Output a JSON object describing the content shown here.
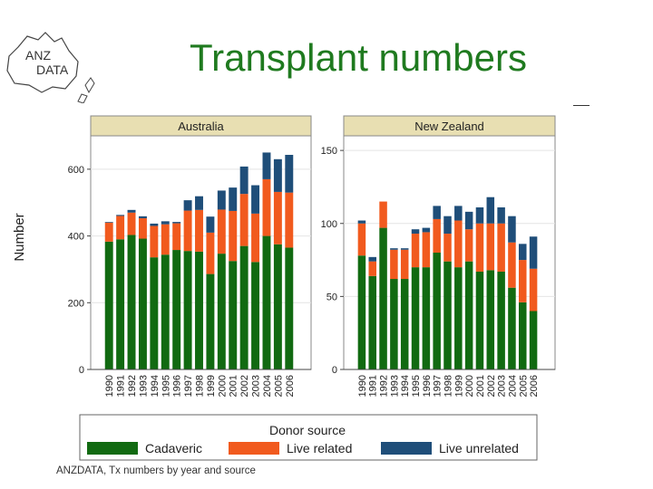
{
  "slide": {
    "title": "Transplant numbers",
    "logo_text_top": "ANZ",
    "logo_text_bottom": "DATA",
    "caption": "ANZDATA, Tx numbers by year and source"
  },
  "colors": {
    "title": "#1f7a1f",
    "cadaveric": "#116a11",
    "live_related": "#f15a1e",
    "live_unrelated": "#1f4e79",
    "panel_header": "#e8dfb2"
  },
  "chart_data": [
    {
      "type": "bar",
      "stacked": true,
      "title": "Australia",
      "ylabel": "Number",
      "ylim": [
        0,
        700
      ],
      "yticks": [
        0,
        200,
        400,
        600
      ],
      "categories": [
        "1990",
        "1991",
        "1992",
        "1993",
        "1994",
        "1995",
        "1996",
        "1997",
        "1998",
        "1999",
        "2000",
        "2001",
        "2002",
        "2003",
        "2004",
        "2005",
        "2006"
      ],
      "series": [
        {
          "name": "Cadaveric",
          "values": [
            383,
            390,
            403,
            392,
            336,
            344,
            358,
            355,
            353,
            286,
            347,
            325,
            370,
            322,
            400,
            375,
            365
          ]
        },
        {
          "name": "Live related",
          "values": [
            57,
            70,
            67,
            61,
            94,
            91,
            80,
            121,
            125,
            124,
            132,
            150,
            156,
            145,
            170,
            157,
            165
          ]
        },
        {
          "name": "Live unrelated",
          "values": [
            2,
            3,
            8,
            6,
            7,
            9,
            4,
            31,
            41,
            48,
            57,
            70,
            82,
            85,
            80,
            98,
            113
          ]
        }
      ]
    },
    {
      "type": "bar",
      "stacked": true,
      "title": "New Zealand",
      "ylabel": "",
      "ylim": [
        0,
        160
      ],
      "yticks": [
        0,
        50,
        100,
        150
      ],
      "categories": [
        "1990",
        "1991",
        "1992",
        "1993",
        "1994",
        "1995",
        "1996",
        "1997",
        "1998",
        "1999",
        "2000",
        "2001",
        "2002",
        "2003",
        "2004",
        "2005",
        "2006"
      ],
      "series": [
        {
          "name": "Cadaveric",
          "values": [
            78,
            64,
            97,
            62,
            62,
            70,
            70,
            80,
            74,
            70,
            74,
            67,
            68,
            67,
            56,
            46,
            40
          ]
        },
        {
          "name": "Live related",
          "values": [
            22,
            10,
            18,
            20,
            20,
            23,
            24,
            23,
            19,
            32,
            22,
            33,
            32,
            33,
            31,
            29,
            29
          ]
        },
        {
          "name": "Live unrelated",
          "values": [
            2,
            3,
            0,
            1,
            1,
            3,
            3,
            9,
            12,
            10,
            12,
            11,
            18,
            11,
            18,
            11,
            22
          ]
        }
      ]
    }
  ],
  "legend": {
    "title": "Donor source",
    "items": [
      "Cadaveric",
      "Live related",
      "Live unrelated"
    ]
  }
}
